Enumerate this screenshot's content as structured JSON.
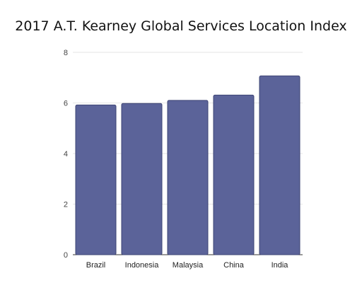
{
  "chart_data": {
    "type": "bar",
    "title": "2017 A.T. Kearney Global Services Location Index",
    "xlabel": "",
    "ylabel": "",
    "categories": [
      "Brazil",
      "Indonesia",
      "Malaysia",
      "China",
      "India"
    ],
    "values": [
      5.92,
      5.98,
      6.1,
      6.31,
      7.07
    ],
    "ylim": [
      0,
      8
    ],
    "yticks": [
      0,
      2,
      4,
      6,
      8
    ],
    "grid": true,
    "legend": "none",
    "bar_color": "#5b6399",
    "bar_edge_color": "#3e4475"
  }
}
